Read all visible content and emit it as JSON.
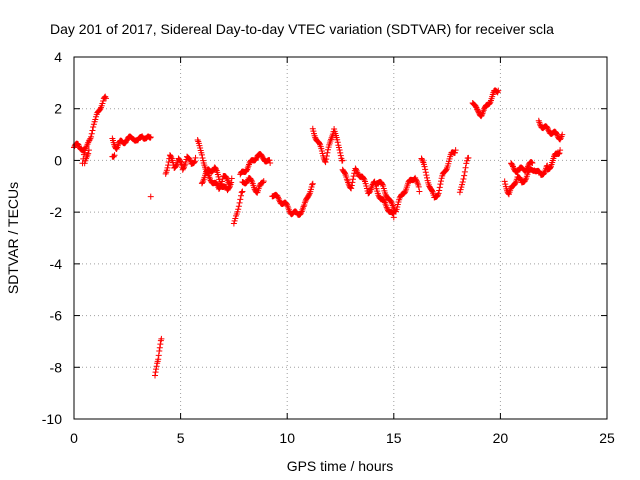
{
  "chart_data": {
    "type": "scatter",
    "title": "Day 201 of 2017, Sidereal Day-to-day VTEC variation (SDTVAR) for receiver scla",
    "xlabel": "GPS time / hours",
    "ylabel": "SDTVAR / TECUs",
    "xlim": [
      0,
      25
    ],
    "ylim": [
      -10,
      4
    ],
    "xticks": [
      "0",
      "5",
      "10",
      "15",
      "20",
      "25"
    ],
    "yticks": [
      "4",
      "2",
      "0",
      "-2",
      "-4",
      "-6",
      "-8",
      "-10"
    ],
    "grid": true,
    "marker": "+",
    "series_color": "#ff0000",
    "segments": [
      {
        "x": [
          0.0,
          0.2,
          0.35,
          0.5
        ],
        "y": [
          0.5,
          0.6,
          0.5,
          0.3
        ]
      },
      {
        "x": [
          0.4,
          0.5,
          0.6,
          0.7,
          0.8,
          0.9,
          1.0,
          1.1,
          1.2,
          1.3,
          1.4,
          1.5
        ],
        "y": [
          -0.1,
          0.3,
          0.5,
          0.8,
          1.0,
          1.3,
          1.5,
          1.8,
          2.0,
          2.2,
          2.4,
          2.4
        ]
      },
      {
        "x": [
          0.5,
          0.6,
          0.7
        ],
        "y": [
          -0.2,
          0.1,
          0.4
        ]
      },
      {
        "x": [
          1.8,
          2.0,
          2.2,
          2.5,
          2.8,
          3.0,
          3.2,
          3.4,
          3.6
        ],
        "y": [
          0.8,
          0.5,
          0.7,
          0.8,
          0.9,
          0.7,
          1.0,
          0.8,
          0.9
        ]
      },
      {
        "x": [
          1.8,
          1.9
        ],
        "y": [
          0.1,
          0.2
        ]
      },
      {
        "x": [
          3.6
        ],
        "y": [
          -1.4
        ]
      },
      {
        "x": [
          3.8,
          3.85,
          3.9,
          3.95,
          4.0,
          4.05,
          4.1
        ],
        "y": [
          -8.4,
          -8.1,
          -7.8,
          -7.6,
          -7.3,
          -7.1,
          -6.9
        ]
      },
      {
        "x": [
          4.3,
          4.5,
          4.7,
          4.9,
          5.1,
          5.3,
          5.5,
          5.7
        ],
        "y": [
          -0.5,
          0.2,
          -0.3,
          0.1,
          -0.4,
          0.2,
          -0.2,
          0.1
        ]
      },
      {
        "x": [
          5.8,
          6.0,
          6.2,
          6.5,
          6.8,
          7.0,
          7.3
        ],
        "y": [
          0.7,
          0.3,
          -0.5,
          -0.8,
          -1.1,
          -0.6,
          -0.9
        ]
      },
      {
        "x": [
          6.0,
          6.3,
          6.6,
          6.9,
          7.2,
          7.4
        ],
        "y": [
          -0.8,
          -0.4,
          -0.3,
          -0.9,
          -1.2,
          -0.7
        ]
      },
      {
        "x": [
          7.5,
          7.6,
          7.7,
          7.8,
          7.9
        ],
        "y": [
          -2.5,
          -2.1,
          -1.8,
          -1.5,
          -1.2
        ]
      },
      {
        "x": [
          7.8,
          8.0,
          8.3,
          8.6,
          8.9,
          9.2
        ],
        "y": [
          -0.6,
          -0.4,
          -0.1,
          0.2,
          0.1,
          -0.1
        ]
      },
      {
        "x": [
          7.9,
          8.2,
          8.6,
          8.9
        ],
        "y": [
          -0.9,
          -0.7,
          -1.2,
          -0.8
        ]
      },
      {
        "x": [
          9.3,
          9.6,
          9.9,
          10.2,
          10.5,
          10.8,
          11.0,
          11.2
        ],
        "y": [
          -1.3,
          -1.5,
          -1.7,
          -2.0,
          -2.1,
          -1.8,
          -1.3,
          -0.9
        ]
      },
      {
        "x": [
          11.2,
          11.4,
          11.6,
          11.8,
          12.0,
          12.2,
          12.4,
          12.6
        ],
        "y": [
          1.2,
          0.8,
          0.4,
          0.0,
          0.6,
          1.3,
          0.5,
          0.0
        ]
      },
      {
        "x": [
          12.6,
          12.8,
          13.0,
          13.2,
          13.5,
          13.8,
          14.1,
          14.4,
          14.7,
          15.0
        ],
        "y": [
          -0.3,
          -0.8,
          -1.0,
          -0.4,
          -0.6,
          -1.2,
          -0.9,
          -1.5,
          -1.8,
          -2.2
        ]
      },
      {
        "x": [
          14.2,
          14.5,
          14.8,
          15.1,
          15.4,
          15.7,
          16.0,
          16.2
        ],
        "y": [
          -0.8,
          -1.0,
          -1.6,
          -1.9,
          -1.3,
          -0.9,
          -0.6,
          -1.2
        ]
      },
      {
        "x": [
          16.3,
          16.5,
          16.7,
          16.9,
          17.1,
          17.3,
          17.5,
          17.7,
          17.9
        ],
        "y": [
          0.1,
          -0.5,
          -1.0,
          -1.5,
          -1.2,
          -0.6,
          -0.2,
          0.2,
          0.4
        ]
      },
      {
        "x": [
          18.1,
          18.2,
          18.3,
          18.4,
          18.5
        ],
        "y": [
          -1.3,
          -0.9,
          -0.5,
          -0.1,
          0.1
        ]
      },
      {
        "x": [
          18.7,
          18.9,
          19.1,
          19.3,
          19.5,
          19.7,
          19.9
        ],
        "y": [
          2.3,
          1.9,
          1.8,
          2.0,
          2.3,
          2.6,
          2.7
        ]
      },
      {
        "x": [
          20.2,
          20.4,
          20.6,
          20.8,
          21.0,
          21.3,
          21.6,
          21.9,
          22.2
        ],
        "y": [
          -0.8,
          -1.3,
          -1.0,
          -0.6,
          -0.9,
          -0.5,
          -0.3,
          -0.6,
          -0.2
        ]
      },
      {
        "x": [
          20.5,
          20.8,
          21.2,
          21.5
        ],
        "y": [
          -0.2,
          -0.4,
          -0.3,
          -0.1
        ]
      },
      {
        "x": [
          21.8,
          22.0,
          22.2,
          22.4,
          22.6,
          22.8,
          22.9
        ],
        "y": [
          1.5,
          1.3,
          1.2,
          1.1,
          1.0,
          0.9,
          1.0
        ]
      },
      {
        "x": [
          22.2,
          22.4,
          22.6,
          22.8
        ],
        "y": [
          -0.4,
          -0.1,
          0.2,
          0.4
        ]
      }
    ]
  }
}
